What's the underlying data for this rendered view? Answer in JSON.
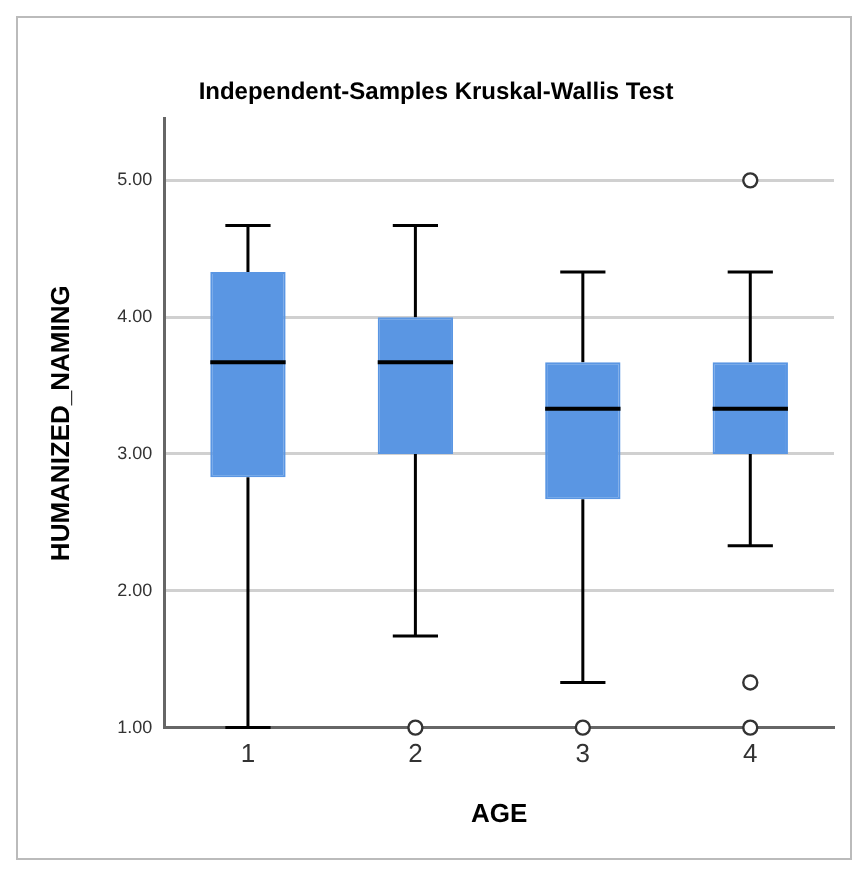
{
  "chart_data": {
    "type": "box",
    "title": "Independent-Samples Kruskal-Wallis Test",
    "xlabel": "AGE",
    "ylabel": "HUMANIZED_NAMING",
    "categories": [
      "1",
      "2",
      "3",
      "4"
    ],
    "boxes": [
      {
        "low": 1,
        "q1": 2.83,
        "median": 3.67,
        "q3": 4.33,
        "high": 4.67
      },
      {
        "low": 1.67,
        "q1": 3,
        "median": 3.67,
        "q3": 4,
        "high": 4.67,
        "outliers": [
          1
        ]
      },
      {
        "low": 1.33,
        "q1": 2.67,
        "median": 3.33,
        "q3": 3.67,
        "high": 4.33,
        "outliers": [
          1
        ]
      },
      {
        "low": 2.33,
        "q1": 3,
        "median": 3.33,
        "q3": 3.67,
        "high": 4.33,
        "outliers": [
          1,
          1.33,
          5
        ]
      }
    ],
    "color": "#5a96e3",
    "ylim": [
      1,
      5.45
    ],
    "yticks": [
      {
        "value": 1,
        "label": "1.00"
      },
      {
        "value": 2,
        "label": "2.00"
      },
      {
        "value": 3,
        "label": "3.00"
      },
      {
        "value": 4,
        "label": "4.00"
      },
      {
        "value": 5,
        "label": "5.00"
      }
    ],
    "grid": "y",
    "legend": false
  }
}
